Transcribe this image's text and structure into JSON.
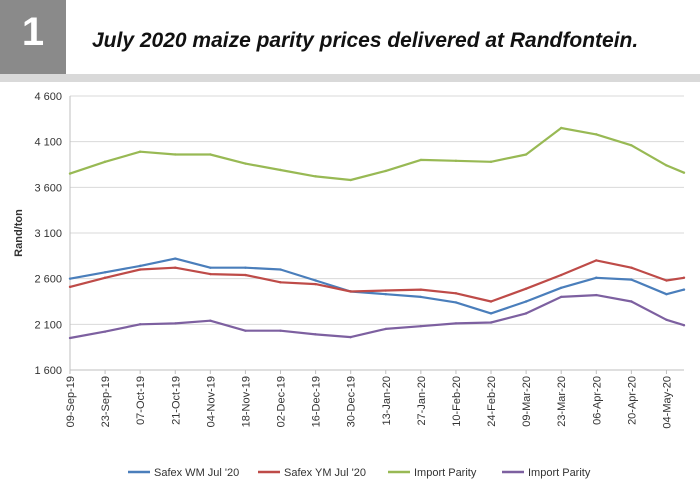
{
  "figure": {
    "number": "1",
    "title": "July 2020 maize parity prices delivered at Randfontein."
  },
  "chart_data": {
    "type": "line",
    "ylabel": "Rand/ton",
    "xlabel": "",
    "ylim": [
      1600,
      4600
    ],
    "yticks": [
      1600,
      2100,
      2600,
      3100,
      3600,
      4100,
      4600
    ],
    "ytick_labels": [
      "1 600",
      "2 100",
      "2 600",
      "3 100",
      "3 600",
      "4 100",
      "4 600"
    ],
    "x_start": "09-Sep-19",
    "x_end": "11-May-20",
    "xticks": [
      "09-Sep-19",
      "23-Sep-19",
      "07-Oct-19",
      "21-Oct-19",
      "04-Nov-19",
      "18-Nov-19",
      "02-Dec-19",
      "16-Dec-19",
      "30-Dec-19",
      "13-Jan-20",
      "27-Jan-20",
      "10-Feb-20",
      "24-Feb-20",
      "09-Mar-20",
      "23-Mar-20",
      "06-Apr-20",
      "20-Apr-20",
      "04-May-20"
    ],
    "grid": true,
    "legend_position": "bottom",
    "series": [
      {
        "name": "Safex WM Jul '20",
        "color": "#4a7ebb",
        "points": [
          [
            "09-Sep-19",
            2600
          ],
          [
            "23-Sep-19",
            2670
          ],
          [
            "07-Oct-19",
            2740
          ],
          [
            "21-Oct-19",
            2820
          ],
          [
            "04-Nov-19",
            2720
          ],
          [
            "18-Nov-19",
            2720
          ],
          [
            "02-Dec-19",
            2700
          ],
          [
            "16-Dec-19",
            2580
          ],
          [
            "30-Dec-19",
            2460
          ],
          [
            "13-Jan-20",
            2430
          ],
          [
            "27-Jan-20",
            2400
          ],
          [
            "10-Feb-20",
            2340
          ],
          [
            "24-Feb-20",
            2220
          ],
          [
            "09-Mar-20",
            2350
          ],
          [
            "23-Mar-20",
            2500
          ],
          [
            "06-Apr-20",
            2610
          ],
          [
            "20-Apr-20",
            2590
          ],
          [
            "04-May-20",
            2430
          ],
          [
            "11-May-20",
            2480
          ]
        ]
      },
      {
        "name": "Safex YM Jul '20",
        "color": "#be4b48",
        "points": [
          [
            "09-Sep-19",
            2510
          ],
          [
            "23-Sep-19",
            2610
          ],
          [
            "07-Oct-19",
            2700
          ],
          [
            "21-Oct-19",
            2720
          ],
          [
            "04-Nov-19",
            2650
          ],
          [
            "18-Nov-19",
            2640
          ],
          [
            "02-Dec-19",
            2560
          ],
          [
            "16-Dec-19",
            2540
          ],
          [
            "30-Dec-19",
            2460
          ],
          [
            "13-Jan-20",
            2470
          ],
          [
            "27-Jan-20",
            2480
          ],
          [
            "10-Feb-20",
            2440
          ],
          [
            "24-Feb-20",
            2350
          ],
          [
            "09-Mar-20",
            2490
          ],
          [
            "23-Mar-20",
            2640
          ],
          [
            "06-Apr-20",
            2800
          ],
          [
            "20-Apr-20",
            2720
          ],
          [
            "04-May-20",
            2580
          ],
          [
            "11-May-20",
            2610
          ]
        ]
      },
      {
        "name": "Import Parity",
        "color": "#98b954",
        "points": [
          [
            "09-Sep-19",
            3750
          ],
          [
            "23-Sep-19",
            3880
          ],
          [
            "07-Oct-19",
            3990
          ],
          [
            "21-Oct-19",
            3960
          ],
          [
            "04-Nov-19",
            3960
          ],
          [
            "18-Nov-19",
            3860
          ],
          [
            "02-Dec-19",
            3790
          ],
          [
            "16-Dec-19",
            3720
          ],
          [
            "30-Dec-19",
            3680
          ],
          [
            "13-Jan-20",
            3780
          ],
          [
            "27-Jan-20",
            3900
          ],
          [
            "10-Feb-20",
            3890
          ],
          [
            "24-Feb-20",
            3880
          ],
          [
            "09-Mar-20",
            3960
          ],
          [
            "23-Mar-20",
            4250
          ],
          [
            "06-Apr-20",
            4180
          ],
          [
            "20-Apr-20",
            4060
          ],
          [
            "04-May-20",
            3840
          ],
          [
            "11-May-20",
            3760
          ]
        ]
      },
      {
        "name": "Import Parity",
        "color": "#7d60a0",
        "points": [
          [
            "09-Sep-19",
            1950
          ],
          [
            "23-Sep-19",
            2020
          ],
          [
            "07-Oct-19",
            2100
          ],
          [
            "21-Oct-19",
            2110
          ],
          [
            "04-Nov-19",
            2140
          ],
          [
            "18-Nov-19",
            2030
          ],
          [
            "02-Dec-19",
            2030
          ],
          [
            "16-Dec-19",
            1990
          ],
          [
            "30-Dec-19",
            1960
          ],
          [
            "13-Jan-20",
            2050
          ],
          [
            "27-Jan-20",
            2080
          ],
          [
            "10-Feb-20",
            2110
          ],
          [
            "24-Feb-20",
            2120
          ],
          [
            "09-Mar-20",
            2220
          ],
          [
            "23-Mar-20",
            2400
          ],
          [
            "06-Apr-20",
            2420
          ],
          [
            "20-Apr-20",
            2350
          ],
          [
            "04-May-20",
            2150
          ],
          [
            "11-May-20",
            2090
          ]
        ]
      }
    ]
  }
}
